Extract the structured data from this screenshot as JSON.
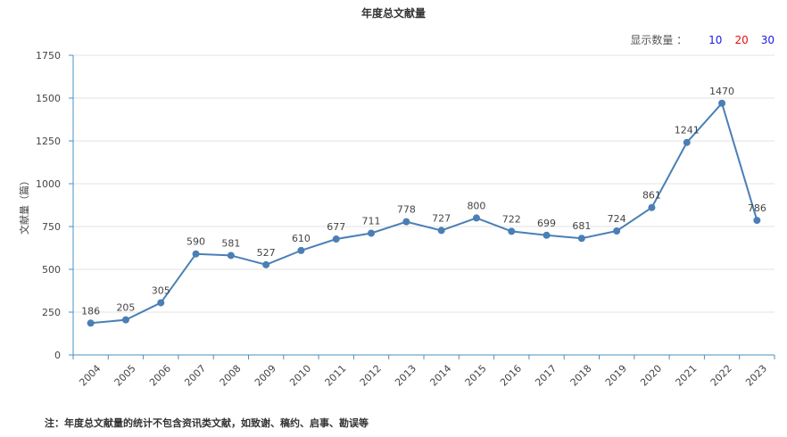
{
  "header": {
    "title": "年度总文献量"
  },
  "controls": {
    "label": "显示数量 ：",
    "options": [
      {
        "label": "10",
        "color": "#1a1ae6"
      },
      {
        "label": "20",
        "color": "#e60f0f"
      },
      {
        "label": "30",
        "color": "#1a1ae6"
      }
    ]
  },
  "footnote": "注：年度总文献量的统计不包含资讯类文献，如致谢、稿约、启事、勘误等",
  "chart_data": {
    "type": "line",
    "title": "年度总文献量",
    "xlabel": "",
    "ylabel": "文献量（篇）",
    "ylim": [
      0,
      1750
    ],
    "yticks": [
      0,
      250,
      500,
      750,
      1000,
      1250,
      1500,
      1750
    ],
    "grid": true,
    "line_color": "#4a7fb5",
    "categories": [
      "2004",
      "2005",
      "2006",
      "2007",
      "2008",
      "2009",
      "2010",
      "2011",
      "2012",
      "2013",
      "2014",
      "2015",
      "2016",
      "2017",
      "2018",
      "2019",
      "2020",
      "2021",
      "2022",
      "2023"
    ],
    "series": [
      {
        "values": [
          186,
          205,
          305,
          590,
          581,
          527,
          610,
          677,
          711,
          778,
          727,
          800,
          722,
          699,
          681,
          724,
          861,
          1241,
          1470,
          786
        ]
      }
    ]
  }
}
